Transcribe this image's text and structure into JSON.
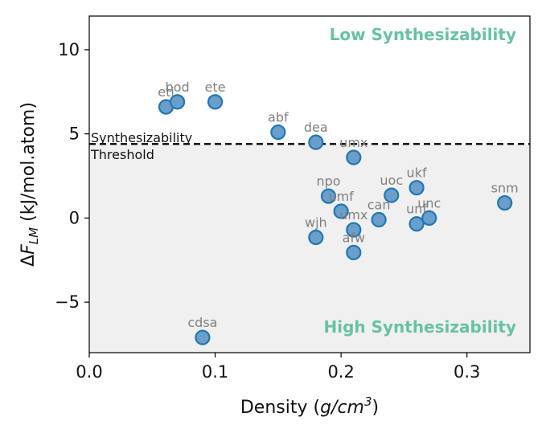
{
  "chart_data": {
    "type": "scatter",
    "xlabel_main": "Density (",
    "xlabel_italic": "g/cm",
    "xlabel_sup": "3",
    "xlabel_close": ")",
    "ylabel_delta": "Δ",
    "ylabel_italic": "F",
    "ylabel_sub": "LM",
    "ylabel_rest": " (kJ/mol.atom)",
    "xlim": [
      0.0,
      0.35
    ],
    "ylim": [
      -8.0,
      12.0
    ],
    "xticks": [
      0.0,
      0.1,
      0.2,
      0.3
    ],
    "xtick_labels": [
      "0.0",
      "0.1",
      "0.2",
      "0.3"
    ],
    "yticks": [
      10,
      5,
      0,
      -5
    ],
    "ytick_labels": [
      "10",
      "5",
      "0",
      "−5"
    ],
    "threshold": 4.4,
    "threshold_label_line1": "Synthesizability",
    "threshold_label_line2": "Threshold",
    "region_top_label": "Low Synthesizability",
    "region_bottom_label": "High Synthesizability",
    "colors": {
      "marker_fill": "#6a9fcb",
      "marker_edge": "#1f77b4",
      "shade": "#f0f0f0",
      "region_text": "#66c2a5",
      "point_label": "#808080"
    },
    "points": [
      {
        "label": "eti",
        "x": 0.061,
        "y": 6.6
      },
      {
        "label": "bod",
        "x": 0.07,
        "y": 6.9
      },
      {
        "label": "ete",
        "x": 0.1,
        "y": 6.9
      },
      {
        "label": "abf",
        "x": 0.15,
        "y": 5.1
      },
      {
        "label": "dea",
        "x": 0.18,
        "y": 4.5
      },
      {
        "label": "umx",
        "x": 0.21,
        "y": 3.6
      },
      {
        "label": "npo",
        "x": 0.19,
        "y": 1.3
      },
      {
        "label": "umf",
        "x": 0.2,
        "y": 0.4
      },
      {
        "label": "uoc",
        "x": 0.24,
        "y": 1.35
      },
      {
        "label": "ukf",
        "x": 0.26,
        "y": 1.8
      },
      {
        "label": "can",
        "x": 0.23,
        "y": -0.1
      },
      {
        "label": "umx",
        "x": 0.21,
        "y": -0.7
      },
      {
        "label": "unf",
        "x": 0.26,
        "y": -0.35
      },
      {
        "label": "unc",
        "x": 0.27,
        "y": 0.0
      },
      {
        "label": "wjh",
        "x": 0.18,
        "y": -1.15
      },
      {
        "label": "afw",
        "x": 0.21,
        "y": -2.05
      },
      {
        "label": "snm",
        "x": 0.33,
        "y": 0.9
      },
      {
        "label": "cdsa",
        "x": 0.09,
        "y": -7.1
      }
    ]
  }
}
